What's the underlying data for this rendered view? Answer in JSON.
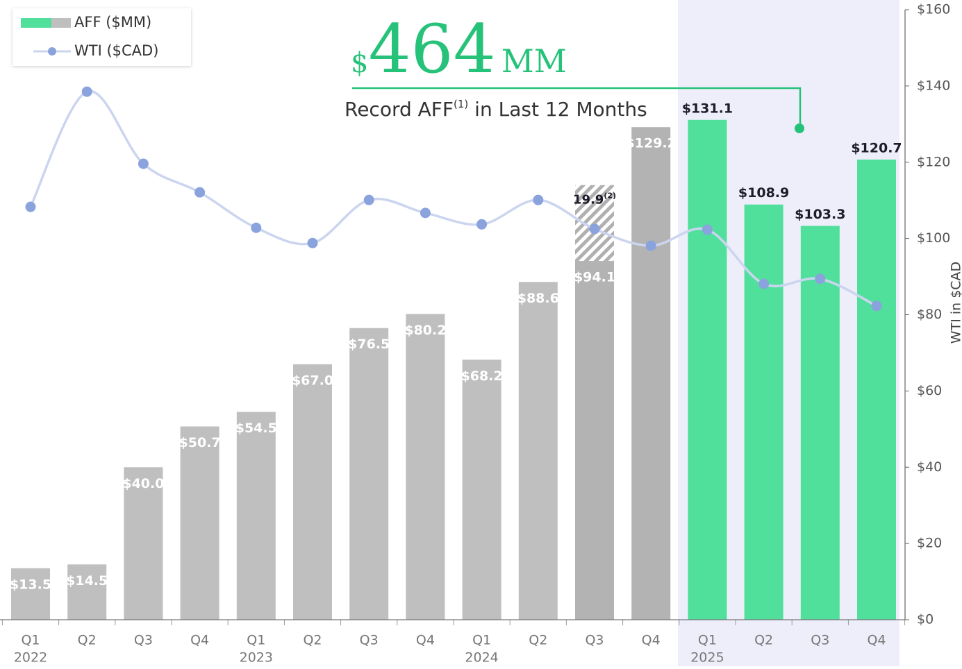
{
  "chart_data": {
    "type": "bar",
    "legend": "upper left",
    "categories": [
      "Q1",
      "Q2",
      "Q3",
      "Q4",
      "Q1",
      "Q2",
      "Q3",
      "Q4",
      "Q1",
      "Q2",
      "Q3",
      "Q4",
      "Q1",
      "Q2",
      "Q3",
      "Q4"
    ],
    "year_labels": [
      "2022",
      null,
      null,
      null,
      "2023",
      null,
      null,
      null,
      "2024",
      null,
      null,
      null,
      "2025",
      null,
      null,
      null
    ],
    "ylim": [
      0,
      160
    ],
    "y2lim": [
      0,
      160
    ],
    "y2ticks": [
      {
        "value": 0,
        "label": "$0"
      },
      {
        "value": 20,
        "label": "$20"
      },
      {
        "value": 40,
        "label": "$40"
      },
      {
        "value": 60,
        "label": "$60"
      },
      {
        "value": 80,
        "label": "$80"
      },
      {
        "value": 100,
        "label": "$100"
      },
      {
        "value": 120,
        "label": "$120"
      },
      {
        "value": 140,
        "label": "$140"
      },
      {
        "value": 160,
        "label": "$160"
      }
    ],
    "y2label": "WTI in $CAD",
    "series": [
      {
        "name": "AFF ($MM)",
        "color": "#bfbfbf",
        "colors": [
          "#bfbfbf",
          "#bfbfbf",
          "#bfbfbf",
          "#bfbfbf",
          "#bfbfbf",
          "#bfbfbf",
          "#bfbfbf",
          "#bfbfbf",
          "#bfbfbf",
          "#bfbfbf",
          "#b3b3b3",
          "#b3b3b3",
          "#50e09c",
          "#50e09c",
          "#50e09c",
          "#50e09c"
        ],
        "label_positions": [
          "inside",
          "inside",
          "inside",
          "inside",
          "inside",
          "inside",
          "inside",
          "inside",
          "inside",
          "inside",
          "inside",
          "inside",
          "above",
          "above",
          "above",
          "above"
        ],
        "values": [
          13.5,
          14.5,
          40.0,
          50.7,
          54.5,
          67.0,
          76.5,
          80.2,
          68.2,
          88.6,
          94.1,
          129.2,
          131.1,
          108.9,
          103.3,
          120.7
        ],
        "value_labels": [
          "$13.5",
          "$14.5",
          "$40.0",
          "$50.7",
          "$54.5",
          "$67.0",
          "$76.5",
          "$80.2",
          "$68.2",
          "$88.6",
          "$94.1",
          "$129.2",
          "$131.1",
          "$108.9",
          "$103.3",
          "$120.7"
        ]
      },
      {
        "pattern": "hatch",
        "values": [
          null,
          null,
          null,
          null,
          null,
          null,
          null,
          null,
          null,
          null,
          19.9,
          null,
          null,
          null,
          null,
          null
        ],
        "value_labels": [
          null,
          null,
          null,
          null,
          null,
          null,
          null,
          null,
          null,
          null,
          "19.9",
          null,
          null,
          null,
          null,
          null
        ],
        "note": "(2)"
      },
      {
        "name": "WTI ($CAD)",
        "type": "line",
        "axis": "y2",
        "color": "#8aa3dd",
        "line_color": "#cbd5ef",
        "values": [
          108.3,
          138.5,
          119.6,
          112.1,
          102.8,
          98.8,
          110.1,
          106.7,
          103.7,
          110.1,
          102.5,
          98.1,
          102.3,
          88.1,
          89.4,
          82.3
        ]
      }
    ],
    "annotation": {
      "prefix": "$",
      "value": "464",
      "unit": "MM",
      "caption": "Record AFF",
      "caption_note": "(1)",
      "caption_rest": " in Last 12 Months",
      "color": "#27c27a"
    }
  }
}
